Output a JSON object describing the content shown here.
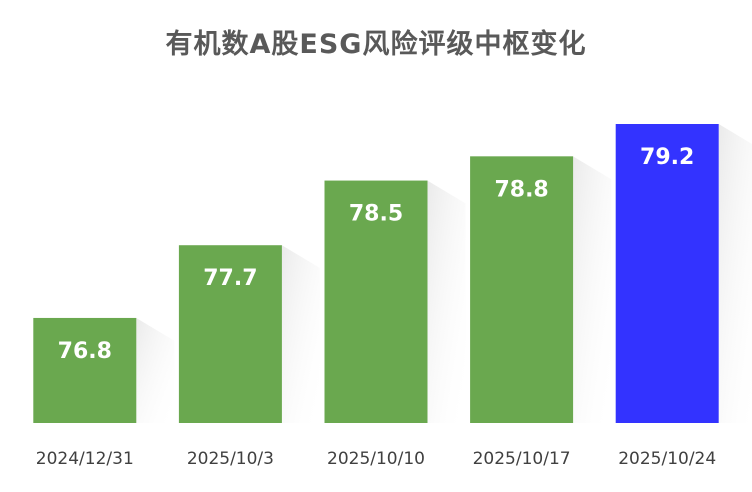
{
  "chart_data": {
    "type": "bar",
    "title": "有机数A股ESG风险评级中枢变化",
    "xlabel": "",
    "ylabel": "",
    "categories": [
      "2024/12/31",
      "2025/10/3",
      "2025/10/10",
      "2025/10/17",
      "2025/10/24"
    ],
    "values": [
      76.8,
      77.7,
      78.5,
      78.8,
      79.2
    ],
    "data_labels": [
      "76.8",
      "77.7",
      "78.5",
      "78.8",
      "79.2"
    ],
    "ylim": [
      75.5,
      79.2
    ],
    "grid": false,
    "legend": "none",
    "colors": {
      "default_bar": "#6aa84f",
      "highlight_bar": "#3333ff",
      "highlight_index": 4,
      "label_text": "#ffffff",
      "tick_text": "#404040",
      "title_text": "#595959"
    }
  }
}
